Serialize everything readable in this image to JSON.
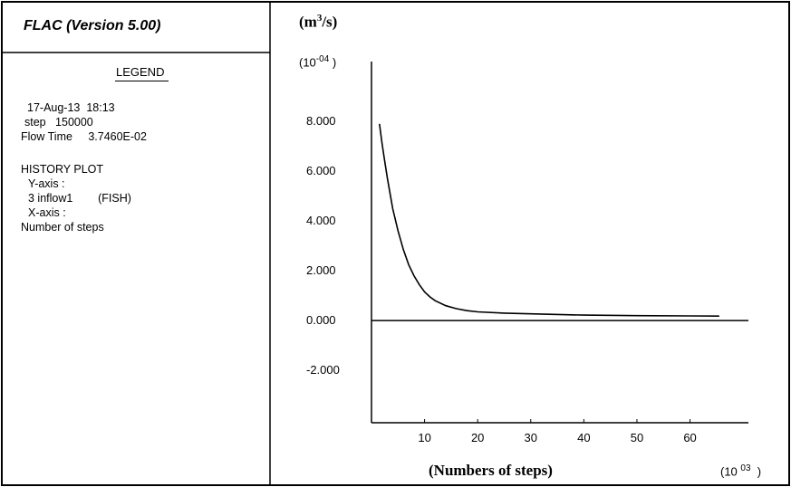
{
  "app": {
    "title": "FLAC (Version 5.00)"
  },
  "legend": {
    "title": "LEGEND",
    "date_line": "17-Aug-13  18:13",
    "step_line": "step   150000",
    "flow_time_line": "Flow Time     3.7460E-02",
    "history_plot": "HISTORY PLOT",
    "y_axis_label": "Y-axis :",
    "y_axis_entry": "3 inflow1        (FISH)",
    "x_axis_label": "X-axis :",
    "x_axis_entry": "Number of steps"
  },
  "colors": {
    "background": "#ffffff",
    "line": "#000000"
  },
  "chart_data": {
    "type": "line",
    "ylabel": "(m³/s)",
    "ylabel_base": "(m",
    "ylabel_sup": "3",
    "ylabel_tail": "/s)",
    "y_multiplier": "(10⁻⁰⁴ )",
    "y_multiplier_base": "(10",
    "y_multiplier_exp": "-04",
    "y_multiplier_tail": " )",
    "xlabel": "(Numbers of steps)",
    "x_multiplier": "(10⁰³ )",
    "x_multiplier_base": "(10 ",
    "x_multiplier_exp": "03",
    "x_multiplier_tail": "  )",
    "y_ticks": [
      8.0,
      6.0,
      4.0,
      2.0,
      0.0,
      -2.0
    ],
    "y_tick_labels": [
      "8.000",
      "6.000",
      "4.000",
      "2.000",
      "0.000",
      "-2.000"
    ],
    "x_ticks": [
      10,
      20,
      30,
      40,
      50,
      60
    ],
    "x_tick_labels": [
      "10",
      "20",
      "30",
      "40",
      "50",
      "60"
    ],
    "xlim": [
      0,
      71
    ],
    "ylim": [
      -4.1,
      10.4
    ],
    "grid": false,
    "series": [
      {
        "x": [
          1.5,
          2,
          2.5,
          3,
          3.5,
          4,
          5,
          6,
          7,
          8,
          9,
          10,
          11,
          12,
          14,
          16,
          18,
          20,
          25,
          30,
          40,
          50,
          60,
          65.5
        ],
        "y": [
          7.9,
          7.1,
          6.4,
          5.7,
          5.1,
          4.5,
          3.6,
          2.85,
          2.25,
          1.8,
          1.45,
          1.15,
          0.95,
          0.8,
          0.6,
          0.48,
          0.4,
          0.35,
          0.3,
          0.27,
          0.22,
          0.2,
          0.19,
          0.18
        ]
      }
    ]
  }
}
